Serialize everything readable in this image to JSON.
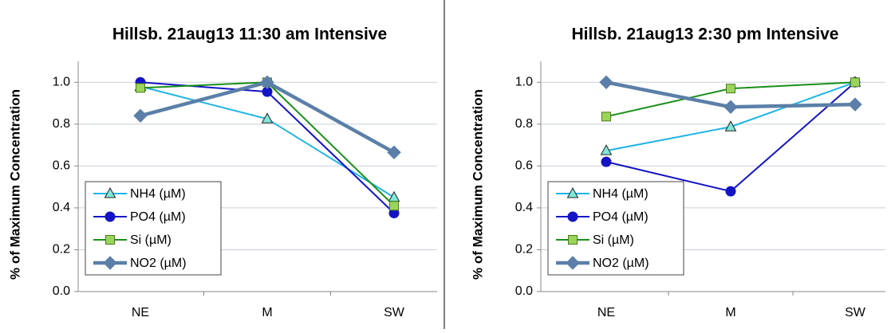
{
  "chart_data": [
    {
      "type": "line",
      "title": "Hillsb. 21aug13 11:30 am Intensive",
      "y_label": "% of Maximum Concentration",
      "categories": [
        "NE",
        "M",
        "SW"
      ],
      "series": [
        {
          "name": "NH4 (µM)",
          "color": "#1fb4e6",
          "marker": "triangle",
          "marker_color": "#7fe8d8",
          "values": [
            0.98,
            0.825,
            0.45
          ]
        },
        {
          "name": "PO4 (µM)",
          "color": "#1414c4",
          "marker": "circle",
          "marker_color": "#1414c4",
          "values": [
            1.0,
            0.955,
            0.375
          ]
        },
        {
          "name": "Si (µM)",
          "color": "#1a8f1a",
          "marker": "square",
          "marker_color": "#9bd45a",
          "values": [
            0.973,
            1.0,
            0.41
          ]
        },
        {
          "name": "NO2 (µM)",
          "color": "#5b7fa8",
          "marker": "diamond",
          "marker_color": "#5b7fa8",
          "values": [
            0.84,
            1.0,
            0.665
          ]
        }
      ],
      "ylim": [
        0,
        1.1
      ],
      "yticks": [
        {
          "value": 0,
          "label": "0.0"
        },
        0.2,
        0.4,
        0.6,
        0.8,
        {
          "value": 1,
          "label": "1.0"
        }
      ],
      "grid": true,
      "legend": "lower left"
    },
    {
      "type": "line",
      "title": "Hillsb. 21aug13 2:30 pm Intensive",
      "y_label": "% of Maximum Concentration",
      "categories": [
        "NE",
        "M",
        "SW"
      ],
      "series": [
        {
          "name": "NH4 (µM)",
          "color": "#1fb4e6",
          "marker": "triangle",
          "marker_color": "#7fe8d8",
          "values": [
            0.673,
            0.787,
            1.0
          ]
        },
        {
          "name": "PO4 (µM)",
          "color": "#1414c4",
          "marker": "circle",
          "marker_color": "#1414c4",
          "values": [
            0.62,
            0.479,
            1.0
          ]
        },
        {
          "name": "Si (µM)",
          "color": "#1a8f1a",
          "marker": "square",
          "marker_color": "#9bd45a",
          "values": [
            0.836,
            0.97,
            1.0
          ]
        },
        {
          "name": "NO2 (µM)",
          "color": "#5b7fa8",
          "marker": "diamond",
          "marker_color": "#5b7fa8",
          "values": [
            1.0,
            0.882,
            0.894
          ]
        }
      ],
      "ylim": [
        0,
        1.1
      ],
      "yticks": [
        {
          "value": 0,
          "label": "0.0"
        },
        0.2,
        0.4,
        0.6,
        0.8,
        {
          "value": 1,
          "label": "1.0"
        }
      ],
      "grid": true,
      "legend": "lower left"
    }
  ]
}
